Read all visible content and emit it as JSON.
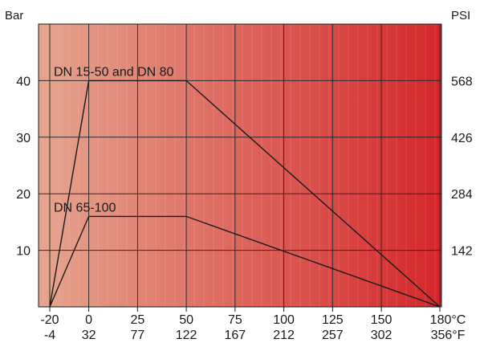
{
  "chart_data": {
    "type": "line",
    "y_axis_left": {
      "unit": "Bar",
      "ticks": [
        10,
        20,
        30,
        40
      ],
      "range": [
        0,
        50
      ]
    },
    "y_axis_right": {
      "unit": "PSI",
      "ticks": [
        "142",
        "284",
        "426",
        "568"
      ]
    },
    "x_axis": {
      "range": [
        -20,
        180
      ],
      "ticks_celsius": [
        "-20",
        "0",
        "25",
        "50",
        "75",
        "100",
        "125",
        "150",
        "180°C"
      ],
      "ticks_fahrenheit": [
        "-4",
        "32",
        "77",
        "122",
        "167",
        "212",
        "257",
        "302",
        "356°F"
      ],
      "tick_values": [
        -20,
        0,
        25,
        50,
        75,
        100,
        125,
        150,
        180
      ]
    },
    "grid": true,
    "background_gradient": {
      "from": "#e6a58f",
      "to": "#d4262a"
    },
    "line_color": "#1a1a1a",
    "series": [
      {
        "name": "DN 15-50 and DN 80",
        "points": [
          [
            -20,
            0
          ],
          [
            0,
            40
          ],
          [
            50,
            40
          ],
          [
            180,
            0
          ]
        ]
      },
      {
        "name": "DN 65-100",
        "points": [
          [
            -20,
            0
          ],
          [
            0,
            16
          ],
          [
            50,
            16
          ],
          [
            180,
            0
          ]
        ]
      }
    ]
  }
}
